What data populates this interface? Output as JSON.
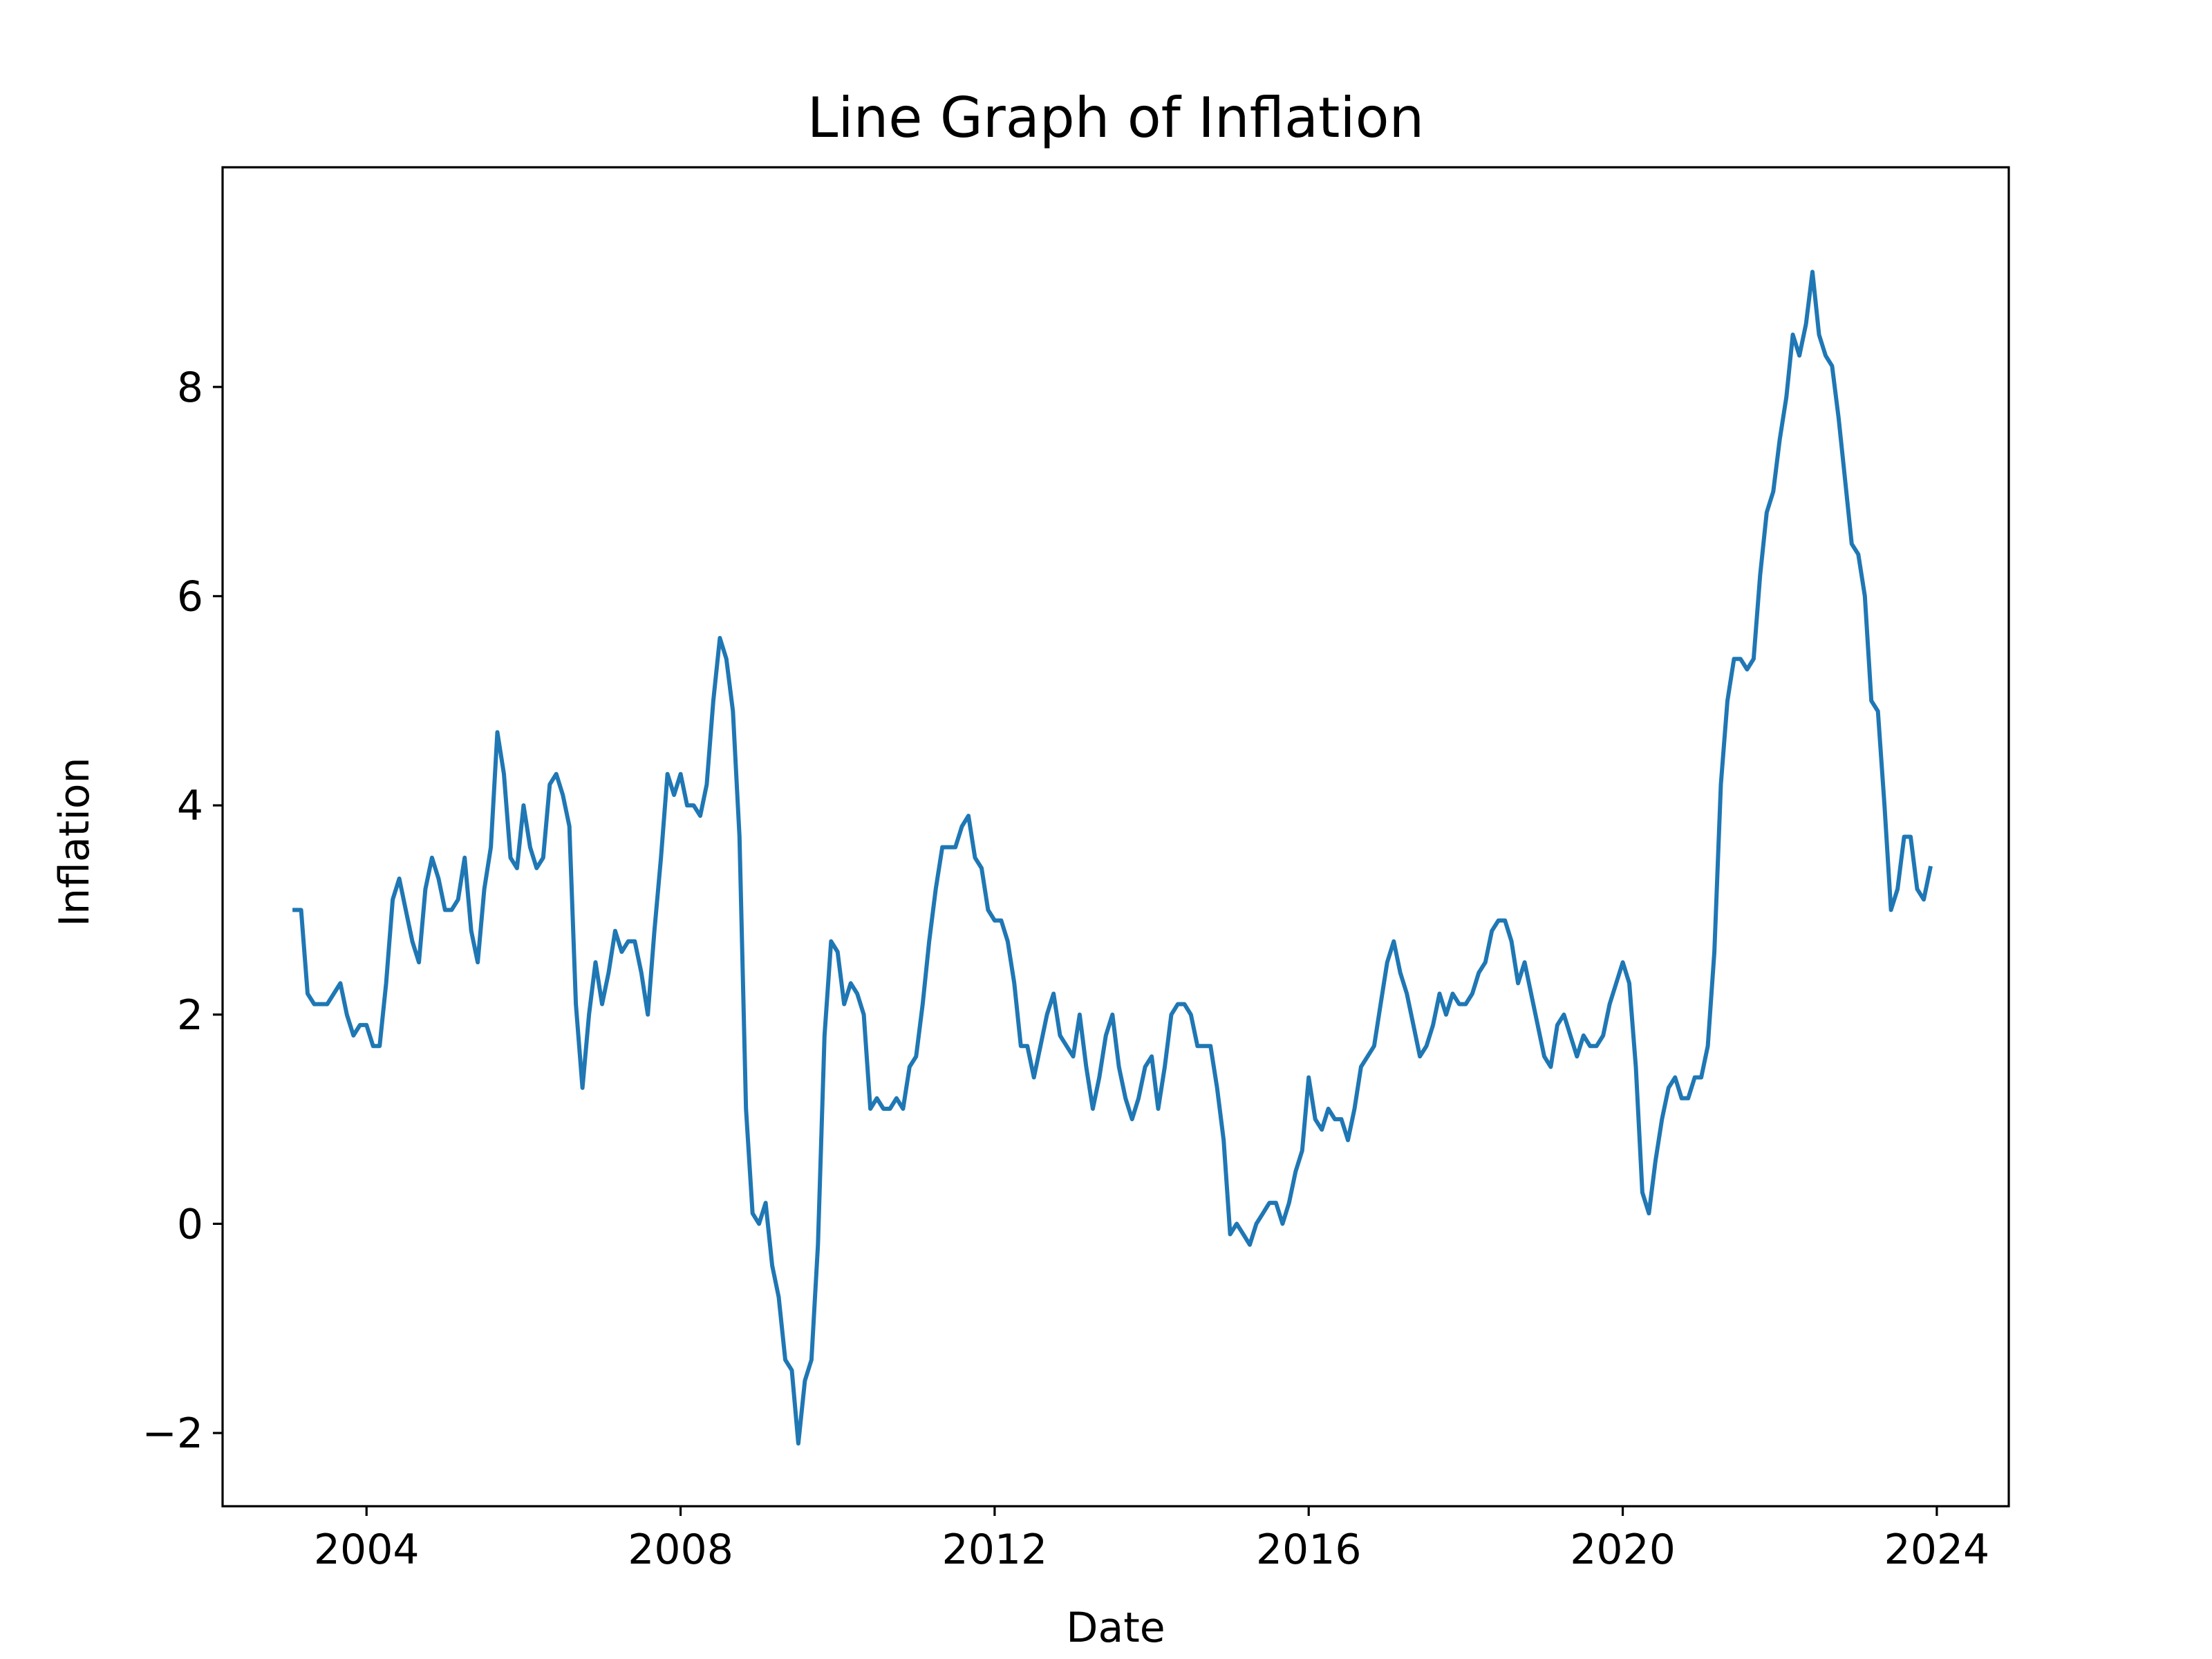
{
  "chart_data": {
    "type": "line",
    "title": "Line Graph of Inflation",
    "xlabel": "Date",
    "ylabel": "Inflation",
    "x_ticks": [
      "2004",
      "2008",
      "2012",
      "2016",
      "2020",
      "2024"
    ],
    "y_ticks": [
      "−2",
      "0",
      "2",
      "4",
      "6",
      "8"
    ],
    "xlim": [
      "2002-03",
      "2024-12"
    ],
    "ylim": [
      -2.7,
      10.1
    ],
    "grid": false,
    "legend": "none",
    "line_color": "#1f77b4",
    "series": [
      {
        "x": [
          "2003-02",
          "2003-03",
          "2003-04",
          "2003-05",
          "2003-06",
          "2003-07",
          "2003-08",
          "2003-09",
          "2003-10",
          "2003-11",
          "2003-12",
          "2004-01",
          "2004-02",
          "2004-03",
          "2004-04",
          "2004-05",
          "2004-06",
          "2004-07",
          "2004-08",
          "2004-09",
          "2004-10",
          "2004-11",
          "2004-12",
          "2005-01",
          "2005-02",
          "2005-03",
          "2005-04",
          "2005-05",
          "2005-06",
          "2005-07",
          "2005-08",
          "2005-09",
          "2005-10",
          "2005-11",
          "2005-12",
          "2006-01",
          "2006-02",
          "2006-03",
          "2006-04",
          "2006-05",
          "2006-06",
          "2006-07",
          "2006-08",
          "2006-09",
          "2006-10",
          "2006-11",
          "2006-12",
          "2007-01",
          "2007-02",
          "2007-03",
          "2007-04",
          "2007-05",
          "2007-06",
          "2007-07",
          "2007-08",
          "2007-09",
          "2007-10",
          "2007-11",
          "2007-12",
          "2008-01",
          "2008-02",
          "2008-03",
          "2008-04",
          "2008-05",
          "2008-06",
          "2008-07",
          "2008-08",
          "2008-09",
          "2008-10",
          "2008-11",
          "2008-12",
          "2009-01",
          "2009-02",
          "2009-03",
          "2009-04",
          "2009-05",
          "2009-06",
          "2009-07",
          "2009-08",
          "2009-09",
          "2009-10",
          "2009-11",
          "2009-12",
          "2010-01",
          "2010-02",
          "2010-03",
          "2010-04",
          "2010-05",
          "2010-06",
          "2010-07",
          "2010-08",
          "2010-09",
          "2010-10",
          "2010-11",
          "2010-12",
          "2011-01",
          "2011-02",
          "2011-03",
          "2011-04",
          "2011-05",
          "2011-06",
          "2011-07",
          "2011-08",
          "2011-09",
          "2011-10",
          "2011-11",
          "2011-12",
          "2012-01",
          "2012-02",
          "2012-03",
          "2012-04",
          "2012-05",
          "2012-06",
          "2012-07",
          "2012-08",
          "2012-09",
          "2012-10",
          "2012-11",
          "2012-12",
          "2013-01",
          "2013-02",
          "2013-03",
          "2013-04",
          "2013-05",
          "2013-06",
          "2013-07",
          "2013-08",
          "2013-09",
          "2013-10",
          "2013-11",
          "2013-12",
          "2014-01",
          "2014-02",
          "2014-03",
          "2014-04",
          "2014-05",
          "2014-06",
          "2014-07",
          "2014-08",
          "2014-09",
          "2014-10",
          "2014-11",
          "2014-12",
          "2015-01",
          "2015-02",
          "2015-03",
          "2015-04",
          "2015-05",
          "2015-06",
          "2015-07",
          "2015-08",
          "2015-09",
          "2015-10",
          "2015-11",
          "2015-12",
          "2016-01",
          "2016-02",
          "2016-03",
          "2016-04",
          "2016-05",
          "2016-06",
          "2016-07",
          "2016-08",
          "2016-09",
          "2016-10",
          "2016-11",
          "2016-12",
          "2017-01",
          "2017-02",
          "2017-03",
          "2017-04",
          "2017-05",
          "2017-06",
          "2017-07",
          "2017-08",
          "2017-09",
          "2017-10",
          "2017-11",
          "2017-12",
          "2018-01",
          "2018-02",
          "2018-03",
          "2018-04",
          "2018-05",
          "2018-06",
          "2018-07",
          "2018-08",
          "2018-09",
          "2018-10",
          "2018-11",
          "2018-12",
          "2019-01",
          "2019-02",
          "2019-03",
          "2019-04",
          "2019-05",
          "2019-06",
          "2019-07",
          "2019-08",
          "2019-09",
          "2019-10",
          "2019-11",
          "2019-12",
          "2020-01",
          "2020-02",
          "2020-03",
          "2020-04",
          "2020-05",
          "2020-06",
          "2020-07",
          "2020-08",
          "2020-09",
          "2020-10",
          "2020-11",
          "2020-12",
          "2021-01",
          "2021-02",
          "2021-03",
          "2021-04",
          "2021-05",
          "2021-06",
          "2021-07",
          "2021-08",
          "2021-09",
          "2021-10",
          "2021-11",
          "2021-12",
          "2022-01",
          "2022-02",
          "2022-03",
          "2022-04",
          "2022-05",
          "2022-06",
          "2022-07",
          "2022-08",
          "2022-09",
          "2022-10",
          "2022-11",
          "2022-12",
          "2023-01",
          "2023-02",
          "2023-03",
          "2023-04",
          "2023-05",
          "2023-06",
          "2023-07",
          "2023-08",
          "2023-09",
          "2023-10",
          "2023-11",
          "2023-12"
        ],
        "values": [
          3.0,
          3.0,
          2.2,
          2.1,
          2.1,
          2.1,
          2.2,
          2.3,
          2.0,
          1.8,
          1.9,
          1.9,
          1.7,
          1.7,
          2.3,
          3.1,
          3.3,
          3.0,
          2.7,
          2.5,
          3.2,
          3.5,
          3.3,
          3.0,
          3.0,
          3.1,
          3.5,
          2.8,
          2.5,
          3.2,
          3.6,
          4.7,
          4.3,
          3.5,
          3.4,
          4.0,
          3.6,
          3.4,
          3.5,
          4.2,
          4.3,
          4.1,
          3.8,
          2.1,
          1.3,
          2.0,
          2.5,
          2.1,
          2.4,
          2.8,
          2.6,
          2.7,
          2.7,
          2.4,
          2.0,
          2.8,
          3.5,
          4.3,
          4.1,
          4.3,
          4.0,
          4.0,
          3.9,
          4.2,
          5.0,
          5.6,
          5.4,
          4.9,
          3.7,
          1.1,
          0.1,
          0.0,
          0.2,
          -0.4,
          -0.7,
          -1.3,
          -1.4,
          -2.1,
          -1.5,
          -1.3,
          -0.2,
          1.8,
          2.7,
          2.6,
          2.1,
          2.3,
          2.2,
          2.0,
          1.1,
          1.2,
          1.1,
          1.1,
          1.2,
          1.1,
          1.5,
          1.6,
          2.1,
          2.7,
          3.2,
          3.6,
          3.6,
          3.6,
          3.8,
          3.9,
          3.5,
          3.4,
          3.0,
          2.9,
          2.9,
          2.7,
          2.3,
          1.7,
          1.7,
          1.4,
          1.7,
          2.0,
          2.2,
          1.8,
          1.7,
          1.6,
          2.0,
          1.5,
          1.1,
          1.4,
          1.8,
          2.0,
          1.5,
          1.2,
          1.0,
          1.2,
          1.5,
          1.6,
          1.1,
          1.5,
          2.0,
          2.1,
          2.1,
          2.0,
          1.7,
          1.7,
          1.7,
          1.3,
          0.8,
          -0.1,
          0.0,
          -0.1,
          -0.2,
          0.0,
          0.1,
          0.2,
          0.2,
          0.0,
          0.2,
          0.5,
          0.7,
          1.4,
          1.0,
          0.9,
          1.1,
          1.0,
          1.0,
          0.8,
          1.1,
          1.5,
          1.6,
          1.7,
          2.1,
          2.5,
          2.7,
          2.4,
          2.2,
          1.9,
          1.6,
          1.7,
          1.9,
          2.2,
          2.0,
          2.2,
          2.1,
          2.1,
          2.2,
          2.4,
          2.5,
          2.8,
          2.9,
          2.9,
          2.7,
          2.3,
          2.5,
          2.2,
          1.9,
          1.6,
          1.5,
          1.9,
          2.0,
          1.8,
          1.6,
          1.8,
          1.7,
          1.7,
          1.8,
          2.1,
          2.3,
          2.5,
          2.3,
          1.5,
          0.3,
          0.1,
          0.6,
          1.0,
          1.3,
          1.4,
          1.2,
          1.2,
          1.4,
          1.4,
          1.7,
          2.6,
          4.2,
          5.0,
          5.4,
          5.4,
          5.3,
          5.4,
          6.2,
          6.8,
          7.0,
          7.5,
          7.9,
          8.5,
          8.3,
          8.6,
          9.1,
          8.5,
          8.3,
          8.2,
          7.7,
          7.1,
          6.5,
          6.4,
          6.0,
          5.0,
          4.9,
          4.0,
          3.0,
          3.2,
          3.7,
          3.7,
          3.2,
          3.1,
          3.4
        ]
      }
    ]
  }
}
